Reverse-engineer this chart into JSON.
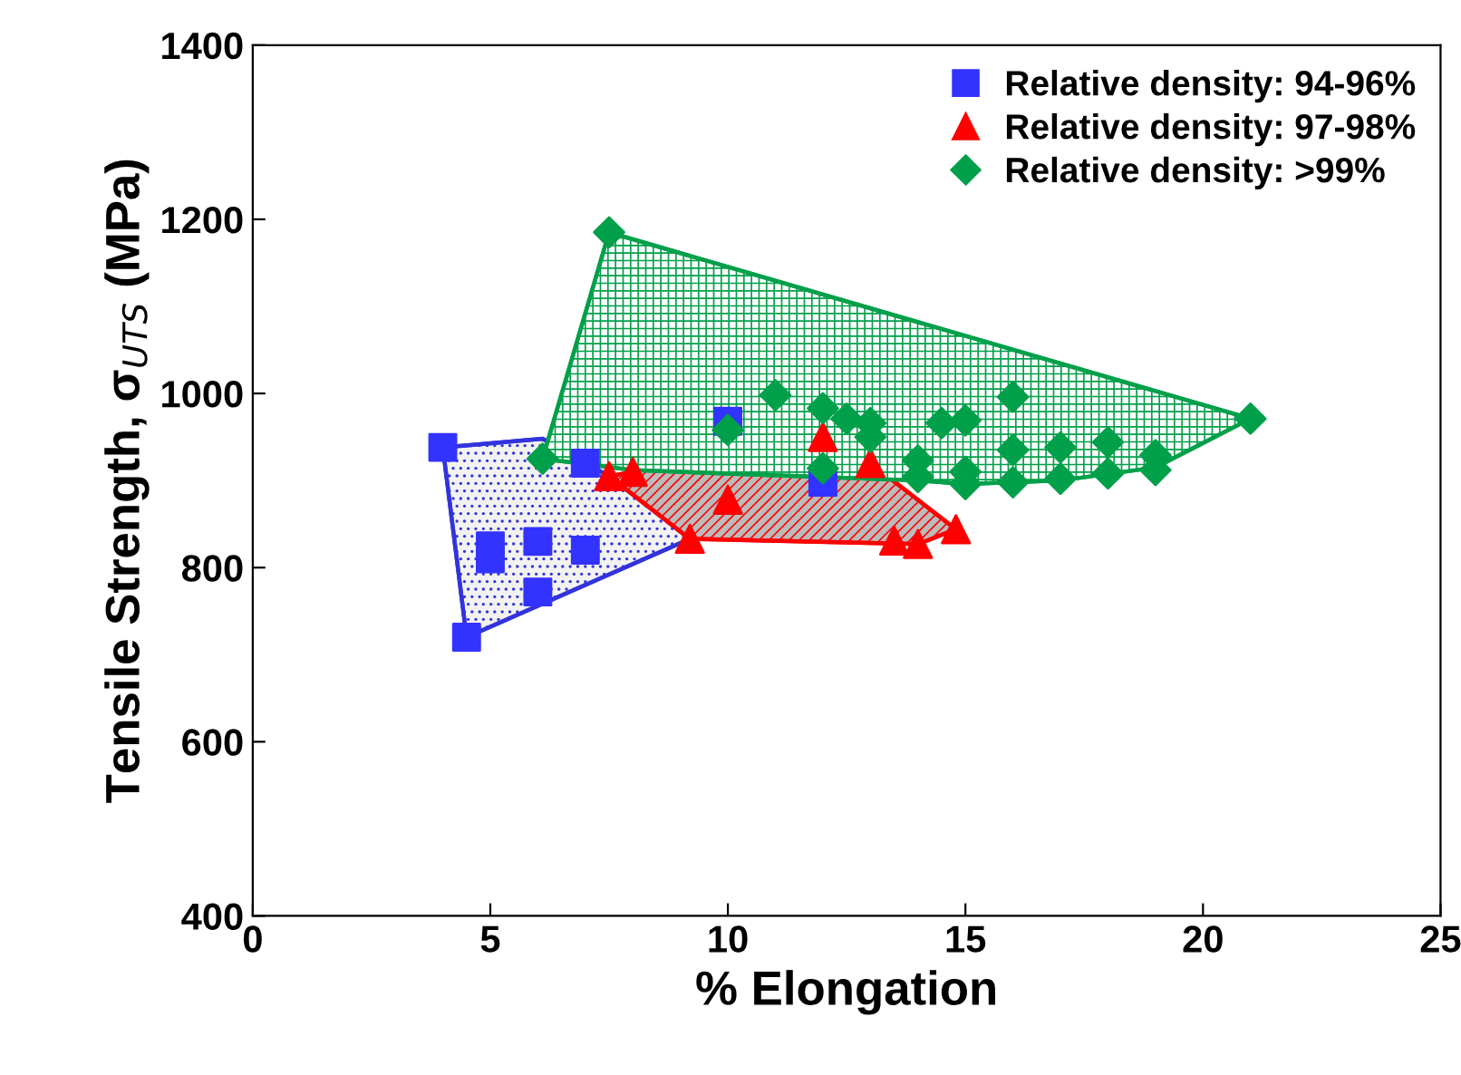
{
  "chart_data": {
    "type": "scatter",
    "xlabel": "% Elongation",
    "ylabel": "Tensile Strength, σ$_{UTS}$ (MPa)",
    "xlim": [
      0,
      25
    ],
    "ylim": [
      400,
      1400
    ],
    "xticks": [
      0,
      5,
      10,
      15,
      20,
      25
    ],
    "yticks": [
      400,
      600,
      800,
      1000,
      1200,
      1400
    ],
    "grid": false,
    "legend": "top right",
    "series": [
      {
        "type": "area",
        "color": "#3333dd",
        "x": [
          4,
          6.1,
          7.5,
          9.2,
          4.5
        ],
        "values": [
          938,
          948,
          905,
          833,
          720
        ]
      },
      {
        "type": "area",
        "color": "#ff0000",
        "x": [
          7.5,
          12,
          13,
          14.8,
          14,
          9.2
        ],
        "values": [
          905,
          950,
          920,
          844,
          827,
          833
        ]
      },
      {
        "type": "area",
        "color": "#00a04a",
        "x": [
          6.1,
          7.5,
          21,
          19,
          17,
          15,
          14,
          8
        ],
        "values": [
          925,
          1185,
          971,
          915,
          900,
          896,
          900,
          912
        ]
      },
      {
        "name": "Relative density: 94-96%",
        "color": "#3333ff",
        "marker": "square",
        "x": [
          4,
          4.5,
          5,
          5,
          6,
          6,
          7,
          7,
          10,
          12
        ],
        "values": [
          938,
          720,
          825,
          810,
          830,
          772,
          820,
          920,
          968,
          898
        ]
      },
      {
        "name": "Relative density: 97-98%",
        "color": "#ff0000",
        "marker": "triangle",
        "x": [
          7.5,
          8,
          9.2,
          10,
          12,
          13,
          13.5,
          14,
          14.8
        ],
        "values": [
          905,
          910,
          833,
          878,
          950,
          920,
          831,
          827,
          844
        ]
      },
      {
        "name": "Relative density: >99%",
        "color": "#00a04a",
        "marker": "diamond",
        "x": [
          6.1,
          7.5,
          10,
          11,
          12,
          12.5,
          13,
          13,
          12,
          14,
          14,
          14.5,
          15,
          15,
          15,
          16,
          16,
          16,
          17,
          17,
          18,
          18,
          19,
          19,
          21
        ],
        "values": [
          925,
          1185,
          958,
          998,
          983,
          971,
          966,
          950,
          914,
          923,
          904,
          966,
          969,
          910,
          896,
          996,
          935,
          898,
          938,
          902,
          944,
          908,
          929,
          912,
          971
        ]
      }
    ]
  }
}
